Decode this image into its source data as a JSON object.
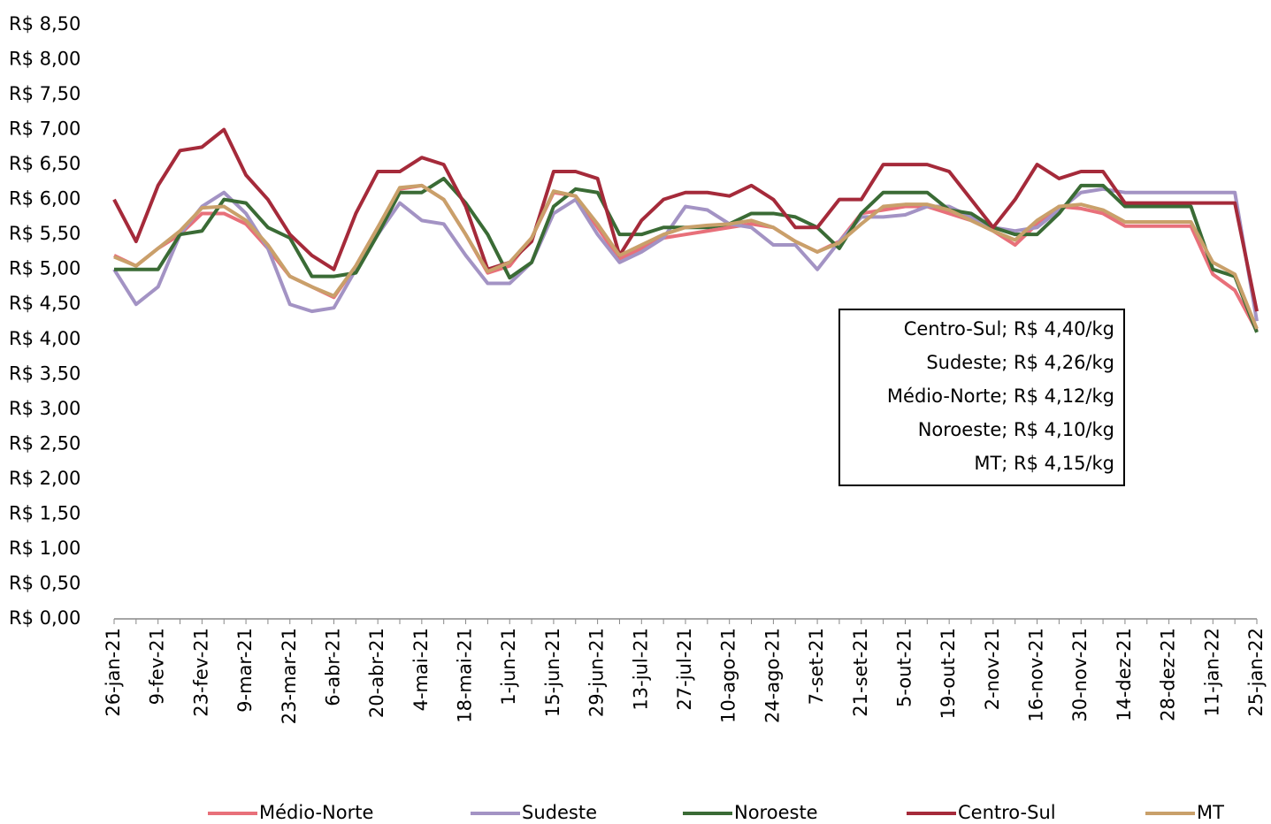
{
  "chart_data": {
    "type": "line",
    "categories": [
      "26-jan-21",
      null,
      "9-fev-21",
      null,
      "23-fev-21",
      null,
      "9-mar-21",
      null,
      "23-mar-21",
      null,
      "6-abr-21",
      null,
      "20-abr-21",
      null,
      "4-mai-21",
      null,
      "18-mai-21",
      null,
      "1-jun-21",
      null,
      "15-jun-21",
      null,
      "29-jun-21",
      null,
      "13-jul-21",
      null,
      "27-jul-21",
      null,
      "10-ago-21",
      null,
      "24-ago-21",
      null,
      "7-set-21",
      null,
      "21-set-21",
      null,
      "5-out-21",
      null,
      "19-out-21",
      null,
      "2-nov-21",
      null,
      "16-nov-21",
      null,
      "30-nov-21",
      null,
      "14-dez-21",
      null,
      "28-dez-21",
      null,
      "11-jan-22",
      null,
      "25-jan-22"
    ],
    "series": [
      {
        "name": "Médio-Norte",
        "color": "#e8707a",
        "values": [
          5.2,
          5.05,
          5.3,
          5.5,
          5.8,
          5.8,
          5.65,
          5.3,
          4.9,
          4.75,
          4.6,
          5.05,
          5.6,
          6.15,
          6.2,
          6.0,
          5.5,
          4.95,
          5.05,
          5.45,
          6.1,
          6.05,
          5.6,
          5.15,
          5.3,
          5.45,
          5.5,
          5.55,
          5.6,
          5.65,
          5.6,
          5.4,
          5.25,
          5.4,
          5.8,
          5.85,
          5.9,
          5.9,
          5.8,
          5.7,
          5.55,
          5.35,
          5.65,
          5.9,
          5.87,
          5.8,
          5.62,
          5.62,
          5.62,
          5.62,
          4.93,
          4.7,
          4.12
        ]
      },
      {
        "name": "Sudeste",
        "color": "#a393c4",
        "values": [
          5.0,
          4.5,
          4.75,
          5.5,
          5.9,
          6.1,
          5.8,
          5.3,
          4.5,
          4.4,
          4.45,
          5.0,
          5.5,
          5.95,
          5.7,
          5.65,
          5.2,
          4.8,
          4.8,
          5.1,
          5.8,
          6.0,
          5.5,
          5.1,
          5.25,
          5.45,
          5.9,
          5.85,
          5.65,
          5.6,
          5.35,
          5.35,
          5.0,
          5.4,
          5.75,
          5.75,
          5.78,
          5.9,
          5.9,
          5.75,
          5.6,
          5.55,
          5.6,
          5.85,
          6.1,
          6.15,
          6.1,
          6.1,
          6.1,
          6.1,
          6.1,
          6.1,
          4.26
        ]
      },
      {
        "name": "Noroeste",
        "color": "#3a6b35",
        "values": [
          5.0,
          5.0,
          5.0,
          5.5,
          5.55,
          6.0,
          5.95,
          5.6,
          5.45,
          4.9,
          4.9,
          4.95,
          5.5,
          6.1,
          6.1,
          6.3,
          5.95,
          5.5,
          4.88,
          5.1,
          5.9,
          6.15,
          6.1,
          5.5,
          5.5,
          5.6,
          5.6,
          5.6,
          5.65,
          5.8,
          5.8,
          5.75,
          5.6,
          5.3,
          5.8,
          6.1,
          6.1,
          6.1,
          5.85,
          5.8,
          5.6,
          5.5,
          5.5,
          5.8,
          6.2,
          6.2,
          5.9,
          5.9,
          5.9,
          5.9,
          5.0,
          4.9,
          4.1
        ]
      },
      {
        "name": "Centro-Sul",
        "color": "#a52a3a",
        "values": [
          6.0,
          5.4,
          6.2,
          6.7,
          6.75,
          7.0,
          6.35,
          6.0,
          5.5,
          5.2,
          5.0,
          5.8,
          6.4,
          6.4,
          6.6,
          6.5,
          5.9,
          5.0,
          5.1,
          5.4,
          6.4,
          6.4,
          6.3,
          5.2,
          5.7,
          6.0,
          6.1,
          6.1,
          6.05,
          6.2,
          6.0,
          5.6,
          5.6,
          6.0,
          6.0,
          6.5,
          6.5,
          6.5,
          6.4,
          6.0,
          5.6,
          6.0,
          6.5,
          6.3,
          6.4,
          6.4,
          5.95,
          5.95,
          5.95,
          5.95,
          5.95,
          5.95,
          4.4
        ]
      },
      {
        "name": "MT",
        "color": "#c9a06a",
        "values": [
          5.18,
          5.05,
          5.3,
          5.55,
          5.88,
          5.9,
          5.7,
          5.35,
          4.9,
          4.75,
          4.62,
          5.05,
          5.6,
          6.17,
          6.2,
          6.0,
          5.5,
          4.97,
          5.1,
          5.45,
          6.12,
          6.05,
          5.65,
          5.2,
          5.35,
          5.5,
          5.6,
          5.63,
          5.65,
          5.7,
          5.6,
          5.4,
          5.25,
          5.38,
          5.65,
          5.9,
          5.93,
          5.93,
          5.85,
          5.7,
          5.55,
          5.42,
          5.7,
          5.9,
          5.93,
          5.85,
          5.68,
          5.68,
          5.68,
          5.68,
          5.1,
          4.93,
          4.15
        ]
      }
    ],
    "ylim": [
      0,
      8.5
    ],
    "yticks": [
      {
        "value": 0,
        "label": "R$ 0,00"
      },
      {
        "value": 0.5,
        "label": "R$ 0,50"
      },
      {
        "value": 1,
        "label": "R$ 1,00"
      },
      {
        "value": 1.5,
        "label": "R$ 1,50"
      },
      {
        "value": 2,
        "label": "R$ 2,00"
      },
      {
        "value": 2.5,
        "label": "R$ 2,50"
      },
      {
        "value": 3,
        "label": "R$ 3,00"
      },
      {
        "value": 3.5,
        "label": "R$ 3,50"
      },
      {
        "value": 4,
        "label": "R$ 4,00"
      },
      {
        "value": 4.5,
        "label": "R$ 4,50"
      },
      {
        "value": 5,
        "label": "R$ 5,00"
      },
      {
        "value": 5.5,
        "label": "R$ 5,50"
      },
      {
        "value": 6,
        "label": "R$ 6,00"
      },
      {
        "value": 6.5,
        "label": "R$ 6,50"
      },
      {
        "value": 7,
        "label": "R$ 7,00"
      },
      {
        "value": 7.5,
        "label": "R$ 7,50"
      },
      {
        "value": 8,
        "label": "R$ 8,00"
      },
      {
        "value": 8.5,
        "label": "R$ 8,50"
      }
    ],
    "grid": false,
    "legend": "bottom",
    "annotations": [
      "Centro-Sul; R$ 4,40/kg",
      "Sudeste; R$ 4,26/kg",
      "Médio-Norte; R$ 4,12/kg",
      "Noroeste; R$ 4,10/kg",
      "MT; R$ 4,15/kg"
    ]
  }
}
